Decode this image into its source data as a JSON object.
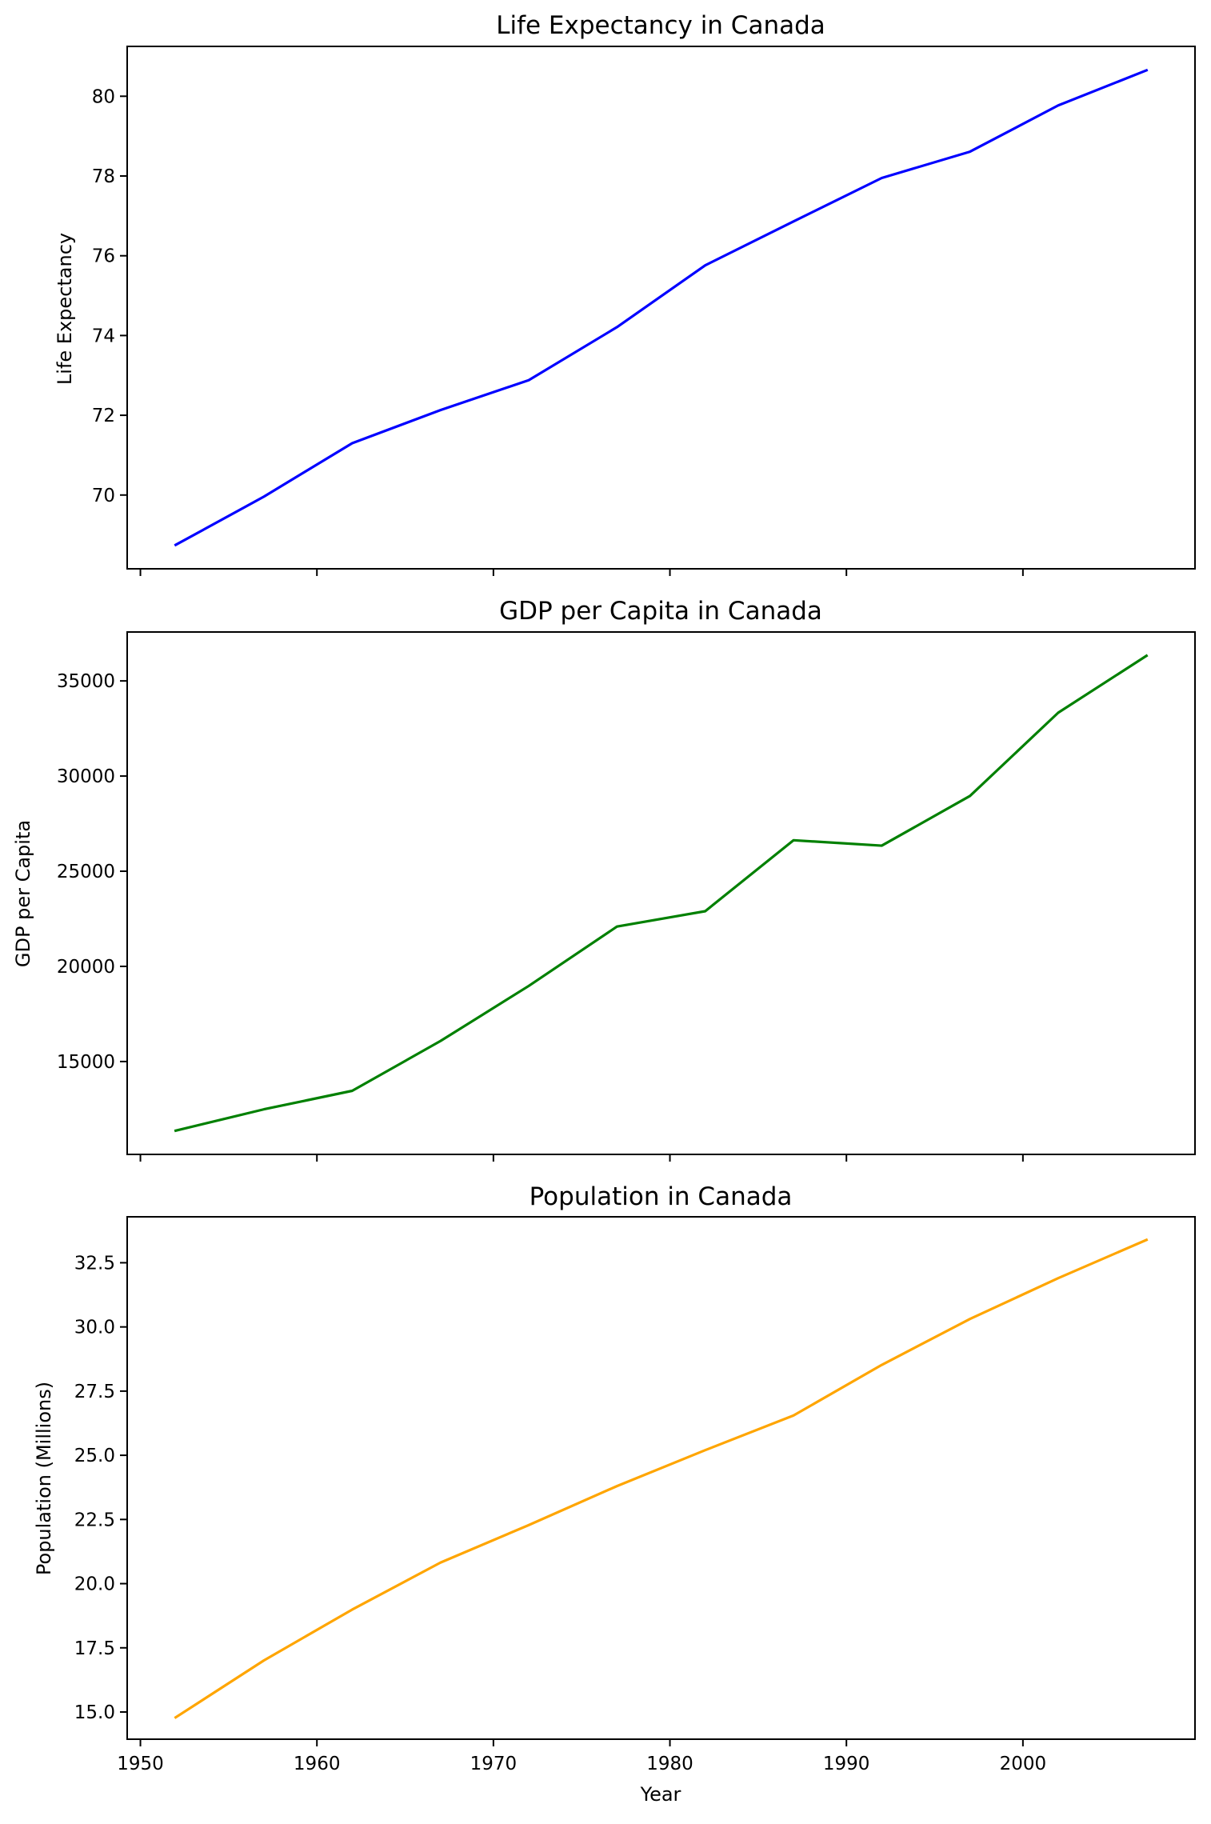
{
  "chart_data": [
    {
      "type": "line",
      "title": "Life Expectancy in Canada",
      "xlabel": "",
      "ylabel": "Life Expectancy",
      "x": [
        1952,
        1957,
        1962,
        1967,
        1972,
        1977,
        1982,
        1987,
        1992,
        1997,
        2002,
        2007
      ],
      "series": [
        {
          "values": [
            68.75,
            69.96,
            71.3,
            72.13,
            72.88,
            74.21,
            75.76,
            76.86,
            77.95,
            78.61,
            79.77,
            80.65
          ],
          "color": "#0000ff"
        }
      ],
      "xlim": [
        1949.25,
        2009.75
      ],
      "ylim": [
        68.15,
        81.25
      ],
      "yticks": [
        70,
        72,
        74,
        76,
        78,
        80
      ],
      "ytick_labels": [
        "70",
        "72",
        "74",
        "76",
        "78",
        "80"
      ],
      "xticks": [
        1950,
        1960,
        1970,
        1980,
        1990,
        2000
      ],
      "xtick_labels": [],
      "grid": false,
      "legend": "none"
    },
    {
      "type": "line",
      "title": "GDP per Capita in Canada",
      "xlabel": "",
      "ylabel": "GDP per Capita",
      "x": [
        1952,
        1957,
        1962,
        1967,
        1972,
        1977,
        1982,
        1987,
        1992,
        1997,
        2002,
        2007
      ],
      "series": [
        {
          "values": [
            11367,
            12490,
            13462,
            16077,
            18971,
            22091,
            22899,
            26627,
            26343,
            28955,
            33329,
            36319
          ],
          "color": "#008000"
        }
      ],
      "xlim": [
        1949.25,
        2009.75
      ],
      "ylim": [
        10120,
        37570
      ],
      "yticks": [
        15000,
        20000,
        25000,
        30000,
        35000
      ],
      "ytick_labels": [
        "15000",
        "20000",
        "25000",
        "30000",
        "35000"
      ],
      "xticks": [
        1950,
        1960,
        1970,
        1980,
        1990,
        2000
      ],
      "xtick_labels": [],
      "grid": false,
      "legend": "none"
    },
    {
      "type": "line",
      "title": "Population in Canada",
      "xlabel": "Year",
      "ylabel": "Population (Millions)",
      "x": [
        1952,
        1957,
        1962,
        1967,
        1972,
        1977,
        1982,
        1987,
        1992,
        1997,
        2002,
        2007
      ],
      "series": [
        {
          "values": [
            14.79,
            17.01,
            18.99,
            20.82,
            22.28,
            23.8,
            25.2,
            26.55,
            28.52,
            30.31,
            31.9,
            33.39
          ],
          "color": "#ffa500"
        }
      ],
      "xlim": [
        1949.25,
        2009.75
      ],
      "ylim": [
        13.94,
        34.29
      ],
      "yticks": [
        15.0,
        17.5,
        20.0,
        22.5,
        25.0,
        27.5,
        30.0,
        32.5
      ],
      "ytick_labels": [
        "15.0",
        "17.5",
        "20.0",
        "22.5",
        "25.0",
        "27.5",
        "30.0",
        "32.5"
      ],
      "xticks": [
        1950,
        1960,
        1970,
        1980,
        1990,
        2000
      ],
      "xtick_labels": [
        "1950",
        "1960",
        "1970",
        "1980",
        "1990",
        "2000"
      ],
      "grid": false,
      "legend": "none"
    }
  ]
}
